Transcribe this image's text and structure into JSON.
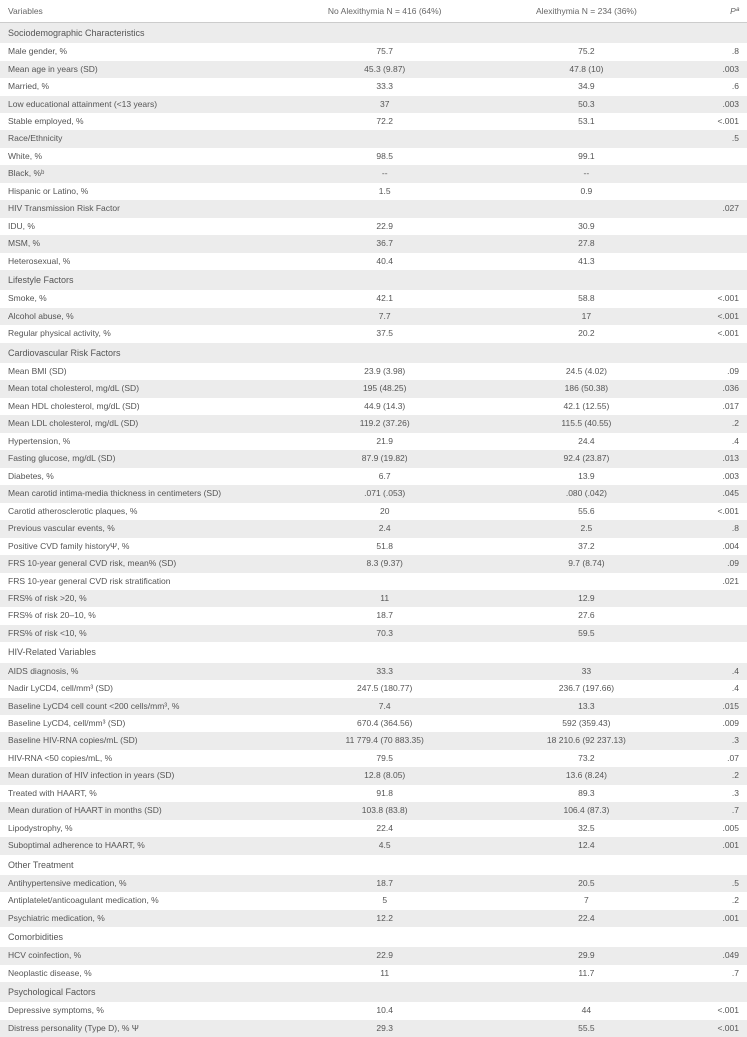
{
  "table": {
    "columns": {
      "var": "Variables",
      "a": "No Alexithymia N = 416 (64%)",
      "b": "Alexithymia N = 234 (36%)",
      "p": "Pª"
    },
    "colors": {
      "row_shade": "#ececec",
      "text": "#555555",
      "border": "#cccccc",
      "background": "#ffffff"
    },
    "font_size_pt": 8.5,
    "rows": [
      {
        "type": "section",
        "shade": true,
        "var": "Sociodemographic Characteristics",
        "a": "",
        "b": "",
        "p": ""
      },
      {
        "shade": false,
        "var": "Male gender, %",
        "a": "75.7",
        "b": "75.2",
        "p": ".8"
      },
      {
        "shade": true,
        "var": "Mean age in years (SD)",
        "a": "45.3 (9.87)",
        "b": "47.8 (10)",
        "p": ".003"
      },
      {
        "shade": false,
        "var": "Married, %",
        "a": "33.3",
        "b": "34.9",
        "p": ".6"
      },
      {
        "shade": true,
        "var": "Low educational attainment (<13 years)",
        "a": "37",
        "b": "50.3",
        "p": ".003"
      },
      {
        "shade": false,
        "var": "Stable employed, %",
        "a": "72.2",
        "b": "53.1",
        "p": "<.001"
      },
      {
        "shade": true,
        "var": "Race/Ethnicity",
        "a": "",
        "b": "",
        "p": ".5"
      },
      {
        "shade": false,
        "var": "White, %",
        "a": "98.5",
        "b": "99.1",
        "p": ""
      },
      {
        "shade": true,
        "var": "Black, %ᵇ",
        "a": "--",
        "b": "--",
        "p": ""
      },
      {
        "shade": false,
        "var": "Hispanic or Latino, %",
        "a": "1.5",
        "b": "0.9",
        "p": ""
      },
      {
        "shade": true,
        "var": "HIV Transmission Risk Factor",
        "a": "",
        "b": "",
        "p": ".027"
      },
      {
        "shade": false,
        "var": "IDU, %",
        "a": "22.9",
        "b": "30.9",
        "p": ""
      },
      {
        "shade": true,
        "var": "MSM, %",
        "a": "36.7",
        "b": "27.8",
        "p": ""
      },
      {
        "shade": false,
        "var": "Heterosexual, %",
        "a": "40.4",
        "b": "41.3",
        "p": ""
      },
      {
        "type": "section",
        "shade": true,
        "var": "Lifestyle Factors",
        "a": "",
        "b": "",
        "p": ""
      },
      {
        "shade": false,
        "var": "Smoke, %",
        "a": "42.1",
        "b": "58.8",
        "p": "<.001"
      },
      {
        "shade": true,
        "var": "Alcohol abuse, %",
        "a": "7.7",
        "b": "17",
        "p": "<.001"
      },
      {
        "shade": false,
        "var": "Regular physical activity, %",
        "a": "37.5",
        "b": "20.2",
        "p": "<.001"
      },
      {
        "type": "section",
        "shade": true,
        "var": "Cardiovascular Risk Factors",
        "a": "",
        "b": "",
        "p": ""
      },
      {
        "shade": false,
        "var": "Mean BMI (SD)",
        "a": "23.9 (3.98)",
        "b": "24.5 (4.02)",
        "p": ".09"
      },
      {
        "shade": true,
        "var": "Mean total cholesterol, mg/dL (SD)",
        "a": "195 (48.25)",
        "b": "186 (50.38)",
        "p": ".036"
      },
      {
        "shade": false,
        "var": "Mean HDL cholesterol, mg/dL (SD)",
        "a": "44.9 (14.3)",
        "b": "42.1 (12.55)",
        "p": ".017"
      },
      {
        "shade": true,
        "var": "Mean LDL cholesterol, mg/dL (SD)",
        "a": "119.2 (37.26)",
        "b": "115.5 (40.55)",
        "p": ".2"
      },
      {
        "shade": false,
        "var": "Hypertension, %",
        "a": "21.9",
        "b": "24.4",
        "p": ".4"
      },
      {
        "shade": true,
        "var": "Fasting glucose, mg/dL (SD)",
        "a": "87.9 (19.82)",
        "b": "92.4 (23.87)",
        "p": ".013"
      },
      {
        "shade": false,
        "var": "Diabetes, %",
        "a": "6.7",
        "b": "13.9",
        "p": ".003"
      },
      {
        "shade": true,
        "var": "Mean carotid intima-media thickness in centimeters (SD)",
        "a": ".071 (.053)",
        "b": ".080 (.042)",
        "p": ".045"
      },
      {
        "shade": false,
        "var": "Carotid atherosclerotic plaques, %",
        "a": "20",
        "b": "55.6",
        "p": "<.001"
      },
      {
        "shade": true,
        "var": "Previous vascular events, %",
        "a": "2.4",
        "b": "2.5",
        "p": ".8"
      },
      {
        "shade": false,
        "var": "Positive CVD family historyΨ, %",
        "a": "51.8",
        "b": "37.2",
        "p": ".004"
      },
      {
        "shade": true,
        "var": "FRS 10-year general CVD risk, mean% (SD)",
        "a": "8.3 (9.37)",
        "b": "9.7 (8.74)",
        "p": ".09"
      },
      {
        "shade": false,
        "var": "FRS 10-year general CVD risk stratification",
        "a": "",
        "b": "",
        "p": ".021"
      },
      {
        "shade": true,
        "var": "FRS% of risk >20, %",
        "a": "11",
        "b": "12.9",
        "p": ""
      },
      {
        "shade": false,
        "var": "FRS% of risk 20–10, %",
        "a": "18.7",
        "b": "27.6",
        "p": ""
      },
      {
        "shade": true,
        "var": "FRS% of risk <10, %",
        "a": "70.3",
        "b": "59.5",
        "p": ""
      },
      {
        "type": "section",
        "shade": false,
        "var": "HIV-Related Variables",
        "a": "",
        "b": "",
        "p": ""
      },
      {
        "shade": true,
        "var": "AIDS diagnosis, %",
        "a": "33.3",
        "b": "33",
        "p": ".4"
      },
      {
        "shade": false,
        "var": "Nadir LyCD4, cell/mm³ (SD)",
        "a": "247.5 (180.77)",
        "b": "236.7 (197.66)",
        "p": ".4"
      },
      {
        "shade": true,
        "var": "Baseline LyCD4 cell count <200 cells/mm³, %",
        "a": "7.4",
        "b": "13.3",
        "p": ".015"
      },
      {
        "shade": false,
        "var": "Baseline LyCD4, cell/mm³ (SD)",
        "a": "670.4 (364.56)",
        "b": "592 (359.43)",
        "p": ".009"
      },
      {
        "shade": true,
        "var": "Baseline HIV-RNA copies/mL (SD)",
        "a": "11 779.4 (70 883.35)",
        "b": "18 210.6 (92 237.13)",
        "p": ".3"
      },
      {
        "shade": false,
        "var": "HIV-RNA <50 copies/mL, %",
        "a": "79.5",
        "b": "73.2",
        "p": ".07"
      },
      {
        "shade": true,
        "var": "Mean duration of HIV infection in years (SD)",
        "a": "12.8 (8.05)",
        "b": "13.6 (8.24)",
        "p": ".2"
      },
      {
        "shade": false,
        "var": "Treated with HAART, %",
        "a": "91.8",
        "b": "89.3",
        "p": ".3"
      },
      {
        "shade": true,
        "var": "Mean duration of HAART in months (SD)",
        "a": "103.8 (83.8)",
        "b": "106.4 (87.3)",
        "p": ".7"
      },
      {
        "shade": false,
        "var": "Lipodystrophy, %",
        "a": "22.4",
        "b": "32.5",
        "p": ".005"
      },
      {
        "shade": true,
        "var": "Suboptimal adherence to HAART, %",
        "a": "4.5",
        "b": "12.4",
        "p": ".001"
      },
      {
        "type": "section",
        "shade": false,
        "var": "Other Treatment",
        "a": "",
        "b": "",
        "p": ""
      },
      {
        "shade": true,
        "var": "Antihypertensive medication, %",
        "a": "18.7",
        "b": "20.5",
        "p": ".5"
      },
      {
        "shade": false,
        "var": "Antiplatelet/anticoagulant medication, %",
        "a": "5",
        "b": "7",
        "p": ".2"
      },
      {
        "shade": true,
        "var": "Psychiatric medication, %",
        "a": "12.2",
        "b": "22.4",
        "p": ".001"
      },
      {
        "type": "section",
        "shade": false,
        "var": "Comorbidities",
        "a": "",
        "b": "",
        "p": ""
      },
      {
        "shade": true,
        "var": "HCV coinfection, %",
        "a": "22.9",
        "b": "29.9",
        "p": ".049"
      },
      {
        "shade": false,
        "var": "Neoplastic disease, %",
        "a": "11",
        "b": "11.7",
        "p": ".7"
      },
      {
        "type": "section",
        "shade": true,
        "var": "Psychological Factors",
        "a": "",
        "b": "",
        "p": ""
      },
      {
        "shade": false,
        "var": "Depressive symptoms, %",
        "a": "10.4",
        "b": "44",
        "p": "<.001"
      },
      {
        "shade": true,
        "var": "Distress personality (Type D), % Ψ",
        "a": "29.3",
        "b": "55.5",
        "p": "<.001"
      }
    ]
  }
}
